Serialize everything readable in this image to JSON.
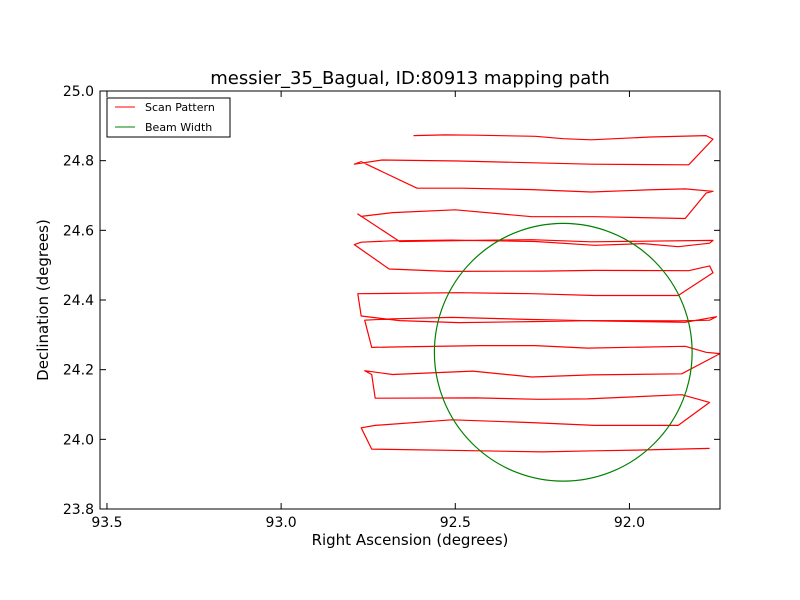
{
  "chart_data": {
    "type": "line",
    "title": "messier_35_Bagual, ID:80913 mapping path",
    "xlabel": "Right Ascension (degrees)",
    "ylabel": "Declination (degrees)",
    "xlim": [
      93.52,
      91.74
    ],
    "ylim": [
      23.8,
      25.0
    ],
    "x_ticks": [
      "93.5",
      "93.0",
      "92.5",
      "92.0"
    ],
    "x_tick_values": [
      93.5,
      93.0,
      92.5,
      92.0
    ],
    "y_ticks": [
      "23.8",
      "24.0",
      "24.2",
      "24.4",
      "24.6",
      "24.8",
      "25.0"
    ],
    "y_tick_values": [
      23.8,
      24.0,
      24.2,
      24.4,
      24.6,
      24.8,
      25.0
    ],
    "grid": false,
    "legend_position": "top-left",
    "series": [
      {
        "name": "Scan Pattern",
        "color": "#ff0000",
        "x": [
          92.62,
          92.53,
          92.44,
          92.27,
          92.19,
          92.11,
          91.94,
          91.78,
          91.76,
          91.83,
          92.11,
          92.49,
          92.71,
          92.79,
          92.77,
          92.61,
          92.48,
          92.28,
          92.11,
          91.95,
          91.84,
          91.76,
          91.78,
          91.84,
          92.1,
          92.28,
          92.5,
          92.68,
          92.77,
          92.78,
          92.66,
          92.45,
          92.28,
          92.11,
          91.76,
          91.77,
          91.86,
          91.96,
          92.1,
          92.27,
          92.51,
          92.68,
          92.77,
          92.79,
          92.69,
          92.52,
          92.25,
          92.1,
          91.83,
          91.77,
          91.76,
          91.86,
          92.1,
          92.28,
          92.49,
          92.68,
          92.78,
          92.77,
          92.66,
          92.49,
          92.28,
          92.12,
          91.86,
          91.77,
          91.75,
          91.84,
          92.1,
          92.28,
          92.51,
          92.68,
          92.76,
          92.74,
          92.68,
          92.43,
          92.27,
          92.12,
          91.84,
          91.78,
          91.74,
          91.85,
          92.11,
          92.28,
          92.45,
          92.68,
          92.76,
          92.74,
          92.73,
          92.44,
          92.26,
          92.12,
          91.85,
          91.77,
          91.86,
          92.1,
          92.28,
          92.51,
          92.73,
          92.77,
          92.74,
          92.43,
          92.25,
          92.1,
          91.98,
          91.77
        ],
        "y": [
          24.872,
          24.874,
          24.873,
          24.87,
          24.863,
          24.86,
          24.868,
          24.872,
          24.862,
          24.788,
          24.79,
          24.799,
          24.802,
          24.79,
          24.797,
          24.721,
          24.721,
          24.717,
          24.71,
          24.716,
          24.719,
          24.712,
          24.707,
          24.634,
          24.639,
          24.639,
          24.659,
          24.651,
          24.64,
          24.647,
          24.568,
          24.571,
          24.573,
          24.567,
          24.571,
          24.563,
          24.553,
          24.562,
          24.557,
          24.568,
          24.572,
          24.57,
          24.566,
          24.559,
          24.489,
          24.482,
          24.483,
          24.485,
          24.484,
          24.498,
          24.478,
          24.413,
          24.413,
          24.418,
          24.421,
          24.419,
          24.418,
          24.354,
          24.341,
          24.335,
          24.338,
          24.341,
          24.34,
          24.342,
          24.352,
          24.336,
          24.34,
          24.344,
          24.35,
          24.346,
          24.342,
          24.264,
          24.265,
          24.269,
          24.269,
          24.262,
          24.267,
          24.25,
          24.246,
          24.188,
          24.185,
          24.179,
          24.196,
          24.186,
          24.197,
          24.186,
          24.118,
          24.119,
          24.115,
          24.116,
          24.128,
          24.106,
          24.04,
          24.04,
          24.048,
          24.056,
          24.04,
          24.033,
          23.972,
          23.967,
          23.964,
          23.967,
          23.969,
          23.974
        ]
      },
      {
        "name": "Beam Width",
        "color": "#008000",
        "shape": "circle",
        "center": [
          92.19,
          24.25
        ],
        "radius": 0.37
      }
    ]
  }
}
